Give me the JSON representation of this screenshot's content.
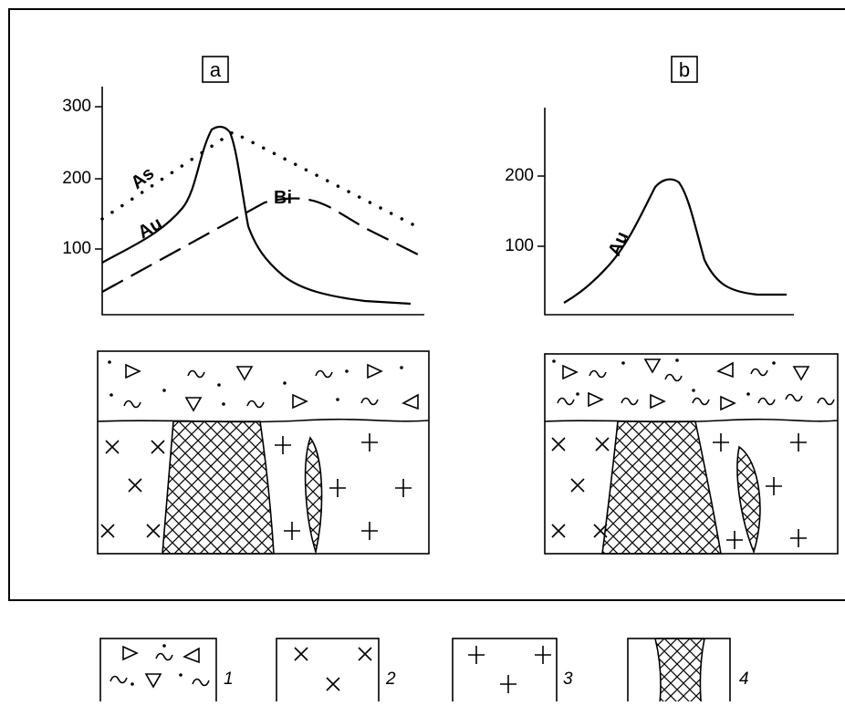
{
  "panels": [
    {
      "label": "a",
      "y_axis_labels": [
        "300",
        "200",
        "100"
      ],
      "curve_labels": [
        "As",
        "Au",
        "Bi"
      ]
    },
    {
      "label": "b",
      "y_axis_labels": [
        "200",
        "100"
      ],
      "curve_labels": [
        "Au"
      ]
    }
  ],
  "legend": [
    "1",
    "2",
    "3",
    "4"
  ]
}
